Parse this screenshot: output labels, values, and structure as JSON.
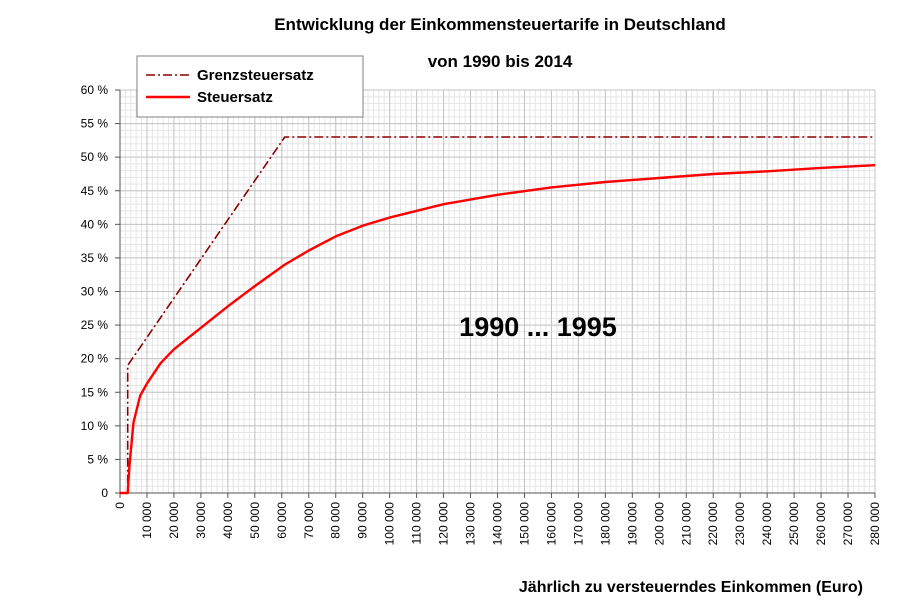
{
  "chart_data": {
    "type": "line",
    "title": "Entwicklung der Einkommensteuertarife in Deutschland",
    "subtitle": "von 1990 bis 2014",
    "xlabel": "Jährlich zu versteuerndes Einkommen (Euro)",
    "ylabel": "",
    "xlim": [
      0,
      280000
    ],
    "ylim": [
      0,
      60
    ],
    "x_ticks": [
      0,
      10000,
      20000,
      30000,
      40000,
      50000,
      60000,
      70000,
      80000,
      90000,
      100000,
      110000,
      120000,
      130000,
      140000,
      150000,
      160000,
      170000,
      180000,
      190000,
      200000,
      210000,
      220000,
      230000,
      240000,
      250000,
      260000,
      270000,
      280000
    ],
    "x_tick_labels": [
      "0",
      "10 000",
      "20 000",
      "30 000",
      "40 000",
      "50 000",
      "60 000",
      "70 000",
      "80 000",
      "90 000",
      "100 000",
      "110 000",
      "120 000",
      "130 000",
      "140 000",
      "150 000",
      "160 000",
      "170 000",
      "180 000",
      "190 000",
      "200 000",
      "210 000",
      "220 000",
      "230 000",
      "240 000",
      "250 000",
      "260 000",
      "270 000",
      "280 000"
    ],
    "y_ticks": [
      0,
      5,
      10,
      15,
      20,
      25,
      30,
      35,
      40,
      45,
      50,
      55,
      60
    ],
    "y_tick_labels": [
      "0",
      "5 %",
      "10 %",
      "15 %",
      "20 %",
      "25 %",
      "30 %",
      "35 %",
      "40 %",
      "45 %",
      "50 %",
      "55 %",
      "60 %"
    ],
    "grid": true,
    "legend_position": "top-left",
    "annotation": "1990 ... 1995",
    "series": [
      {
        "name": "Grenzsteuersatz",
        "color": "#8b0000",
        "style": "dash-dot",
        "x": [
          0,
          2870,
          2871,
          61130,
          61131,
          280000
        ],
        "y": [
          0,
          0,
          19,
          53,
          53,
          53
        ]
      },
      {
        "name": "Steuersatz",
        "color": "#ff0000",
        "style": "solid",
        "x": [
          0,
          2870,
          3500,
          5000,
          7500,
          10000,
          15000,
          20000,
          30000,
          40000,
          50000,
          61130,
          70000,
          80000,
          90000,
          100000,
          120000,
          140000,
          160000,
          180000,
          200000,
          220000,
          240000,
          260000,
          280000
        ],
        "y": [
          0,
          0,
          4,
          10.5,
          14.5,
          16.3,
          19.3,
          21.4,
          24.6,
          27.8,
          30.8,
          34,
          36.1,
          38.2,
          39.8,
          41,
          43,
          44.4,
          45.5,
          46.3,
          46.9,
          47.5,
          47.9,
          48.4,
          48.8
        ]
      }
    ]
  }
}
